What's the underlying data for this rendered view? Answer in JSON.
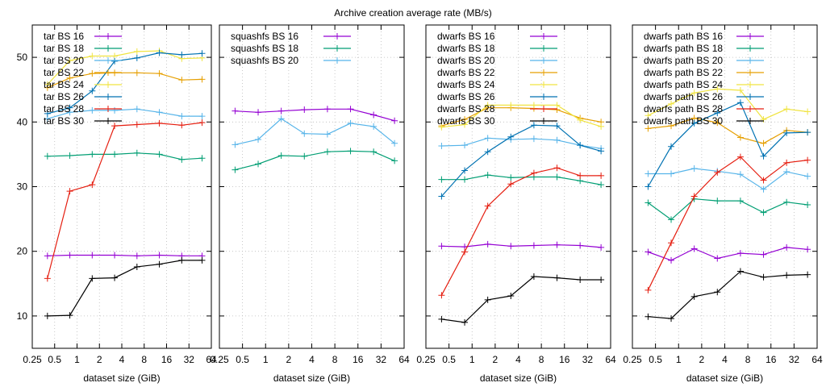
{
  "chart_data": {
    "title": "Archive creation average rate (MB/s)",
    "type": "line",
    "x_scale": "log2",
    "xlim": [
      0.25,
      64
    ],
    "ylim": [
      5,
      55
    ],
    "xticks": [
      {
        "v": 0.25,
        "label": "0.25"
      },
      {
        "v": 0.5,
        "label": "0.5"
      },
      {
        "v": 1,
        "label": "1"
      },
      {
        "v": 2,
        "label": "2"
      },
      {
        "v": 4,
        "label": "4"
      },
      {
        "v": 8,
        "label": "8"
      },
      {
        "v": 16,
        "label": "16"
      },
      {
        "v": 32,
        "label": "32"
      },
      {
        "v": 64,
        "label": "64"
      }
    ],
    "yticks": [
      {
        "v": 10,
        "label": "10"
      },
      {
        "v": 20,
        "label": "20"
      },
      {
        "v": 30,
        "label": "30"
      },
      {
        "v": 40,
        "label": "40"
      },
      {
        "v": 50,
        "label": "50"
      }
    ],
    "grid": true,
    "legend_position": "top-left",
    "panels": [
      {
        "xlabel": "dataset size (GiB)",
        "series": [
          {
            "name": "tar BS 16",
            "color": "#9400d3",
            "x": [
              0.4,
              0.8,
              1.6,
              3.2,
              6.4,
              12.8,
              25.6,
              48
            ],
            "y": [
              19.3,
              19.4,
              19.4,
              19.4,
              19.3,
              19.4,
              19.3,
              19.3
            ]
          },
          {
            "name": "tar BS 18",
            "color": "#009e73",
            "x": [
              0.4,
              0.8,
              1.6,
              3.2,
              6.4,
              12.8,
              25.6,
              48
            ],
            "y": [
              34.7,
              34.8,
              35.0,
              35.0,
              35.2,
              35.0,
              34.2,
              34.4
            ]
          },
          {
            "name": "tar BS 20",
            "color": "#56b4e9",
            "x": [
              0.4,
              0.8,
              1.6,
              3.2,
              6.4,
              12.8,
              25.6,
              48
            ],
            "y": [
              40.5,
              41.5,
              41.8,
              41.8,
              42.0,
              41.5,
              40.9,
              40.9
            ]
          },
          {
            "name": "tar BS 22",
            "color": "#e69f00",
            "x": [
              0.4,
              0.8,
              1.6,
              3.2,
              6.4,
              12.8,
              25.6,
              48
            ],
            "y": [
              45.3,
              46.8,
              47.5,
              47.6,
              47.6,
              47.5,
              46.5,
              46.6
            ]
          },
          {
            "name": "tar BS 24",
            "color": "#f0e442",
            "x": [
              0.4,
              0.8,
              1.6,
              3.2,
              6.4,
              12.8,
              25.6,
              48
            ],
            "y": [
              45.8,
              49.5,
              50.2,
              50.2,
              50.9,
              51.0,
              49.8,
              49.9
            ]
          },
          {
            "name": "tar BS 26",
            "color": "#0072b2",
            "x": [
              0.4,
              0.8,
              1.6,
              3.2,
              6.4,
              12.8,
              25.6,
              48
            ],
            "y": [
              41.3,
              42.2,
              44.8,
              49.4,
              49.9,
              50.7,
              50.4,
              50.6
            ]
          },
          {
            "name": "tar BS 28",
            "color": "#e51e10",
            "x": [
              0.4,
              0.8,
              1.6,
              3.2,
              6.4,
              12.8,
              25.6,
              48
            ],
            "y": [
              15.8,
              29.3,
              30.3,
              39.4,
              39.6,
              39.8,
              39.5,
              39.9
            ]
          },
          {
            "name": "tar BS 30",
            "color": "#000000",
            "x": [
              0.4,
              0.8,
              1.6,
              3.2,
              6.4,
              12.8,
              25.6,
              48
            ],
            "y": [
              10.0,
              10.1,
              15.8,
              15.9,
              17.6,
              18.0,
              18.6,
              18.6
            ]
          }
        ]
      },
      {
        "xlabel": "dataset size (GiB)",
        "series": [
          {
            "name": "squashfs BS 16",
            "color": "#9400d3",
            "x": [
              0.4,
              0.8,
              1.6,
              3.2,
              6.4,
              12.8,
              25.6,
              48
            ],
            "y": [
              41.7,
              41.5,
              41.7,
              41.9,
              42.0,
              42.0,
              41.1,
              40.2
            ]
          },
          {
            "name": "squashfs BS 18",
            "color": "#009e73",
            "x": [
              0.4,
              0.8,
              1.6,
              3.2,
              6.4,
              12.8,
              25.6,
              48
            ],
            "y": [
              32.6,
              33.5,
              34.8,
              34.7,
              35.4,
              35.5,
              35.4,
              34.0
            ]
          },
          {
            "name": "squashfs BS 20",
            "color": "#56b4e9",
            "x": [
              0.4,
              0.8,
              1.6,
              3.2,
              6.4,
              12.8,
              25.6,
              48
            ],
            "y": [
              36.5,
              37.3,
              40.5,
              38.2,
              38.1,
              39.8,
              39.3,
              36.7
            ]
          }
        ]
      },
      {
        "xlabel": "dataset size (GiB)",
        "series": [
          {
            "name": "dwarfs BS 16",
            "color": "#9400d3",
            "x": [
              0.4,
              0.8,
              1.6,
              3.2,
              6.4,
              12.8,
              25.6,
              48
            ],
            "y": [
              20.8,
              20.7,
              21.1,
              20.8,
              20.9,
              21.0,
              20.9,
              20.6
            ]
          },
          {
            "name": "dwarfs BS 18",
            "color": "#009e73",
            "x": [
              0.4,
              0.8,
              1.6,
              3.2,
              6.4,
              12.8,
              25.6,
              48
            ],
            "y": [
              31.1,
              31.1,
              31.8,
              31.4,
              31.5,
              31.5,
              30.9,
              30.3
            ]
          },
          {
            "name": "dwarfs BS 20",
            "color": "#56b4e9",
            "x": [
              0.4,
              0.8,
              1.6,
              3.2,
              6.4,
              12.8,
              25.6,
              48
            ],
            "y": [
              36.3,
              36.4,
              37.5,
              37.3,
              37.4,
              37.2,
              36.4,
              35.9
            ]
          },
          {
            "name": "dwarfs BS 22",
            "color": "#e69f00",
            "x": [
              0.4,
              0.8,
              1.6,
              3.2,
              6.4,
              12.8,
              25.6,
              48
            ],
            "y": [
              39.4,
              40.4,
              42.2,
              42.2,
              42.1,
              41.9,
              40.6,
              40.0
            ]
          },
          {
            "name": "dwarfs BS 24",
            "color": "#f0e442",
            "x": [
              0.4,
              0.8,
              1.6,
              3.2,
              6.4,
              12.8,
              25.6,
              48
            ],
            "y": [
              39.2,
              39.6,
              42.6,
              42.6,
              42.6,
              42.6,
              40.3,
              39.3
            ]
          },
          {
            "name": "dwarfs BS 26",
            "color": "#0072b2",
            "x": [
              0.4,
              0.8,
              1.6,
              3.2,
              6.4,
              12.8,
              25.6,
              48
            ],
            "y": [
              28.5,
              32.5,
              35.4,
              37.7,
              39.5,
              39.4,
              36.4,
              35.5
            ]
          },
          {
            "name": "dwarfs BS 28",
            "color": "#e51e10",
            "x": [
              0.4,
              0.8,
              1.6,
              3.2,
              6.4,
              12.8,
              25.6,
              48
            ],
            "y": [
              13.2,
              19.9,
              27.0,
              30.4,
              32.1,
              32.9,
              31.7,
              31.7
            ]
          },
          {
            "name": "dwarfs BS 30",
            "color": "#000000",
            "x": [
              0.4,
              0.8,
              1.6,
              3.2,
              6.4,
              12.8,
              25.6,
              48
            ],
            "y": [
              9.5,
              9.0,
              12.5,
              13.1,
              16.1,
              15.9,
              15.6,
              15.6
            ]
          }
        ]
      },
      {
        "xlabel": "dataset size (GiB)",
        "series": [
          {
            "name": "dwarfs path BS 16",
            "color": "#9400d3",
            "x": [
              0.4,
              0.8,
              1.6,
              3.2,
              6.4,
              12.8,
              25.6,
              48
            ],
            "y": [
              19.9,
              18.6,
              20.4,
              18.9,
              19.7,
              19.5,
              20.6,
              20.3
            ]
          },
          {
            "name": "dwarfs path BS 18",
            "color": "#009e73",
            "x": [
              0.4,
              0.8,
              1.6,
              3.2,
              6.4,
              12.8,
              25.6,
              48
            ],
            "y": [
              27.5,
              24.9,
              28.1,
              27.8,
              27.8,
              26.0,
              27.6,
              27.2
            ]
          },
          {
            "name": "dwarfs path BS 20",
            "color": "#56b4e9",
            "x": [
              0.4,
              0.8,
              1.6,
              3.2,
              6.4,
              12.8,
              25.6,
              48
            ],
            "y": [
              32.0,
              32.0,
              32.8,
              32.4,
              31.9,
              29.6,
              32.3,
              31.6
            ]
          },
          {
            "name": "dwarfs path BS 22",
            "color": "#e69f00",
            "x": [
              0.4,
              0.8,
              1.6,
              3.2,
              6.4,
              12.8,
              25.6,
              48
            ],
            "y": [
              39.0,
              39.4,
              40.6,
              39.9,
              37.6,
              36.7,
              38.7,
              38.4
            ]
          },
          {
            "name": "dwarfs path BS 24",
            "color": "#f0e442",
            "x": [
              0.4,
              0.8,
              1.6,
              3.2,
              6.4,
              12.8,
              25.6,
              48
            ],
            "y": [
              41.0,
              42.8,
              44.5,
              45.1,
              44.9,
              40.4,
              42.0,
              41.6
            ]
          },
          {
            "name": "dwarfs path BS 26",
            "color": "#0072b2",
            "x": [
              0.4,
              0.8,
              1.6,
              3.2,
              6.4,
              12.8,
              25.6,
              48
            ],
            "y": [
              30.0,
              36.2,
              39.8,
              41.4,
              43.0,
              34.7,
              38.3,
              38.4
            ]
          },
          {
            "name": "dwarfs path BS 28",
            "color": "#e51e10",
            "x": [
              0.4,
              0.8,
              1.6,
              3.2,
              6.4,
              12.8,
              25.6,
              48
            ],
            "y": [
              14.0,
              21.3,
              28.5,
              32.2,
              34.6,
              31.0,
              33.7,
              34.1
            ]
          },
          {
            "name": "dwarfs path BS 30",
            "color": "#000000",
            "x": [
              0.4,
              0.8,
              1.6,
              3.2,
              6.4,
              12.8,
              25.6,
              48
            ],
            "y": [
              9.9,
              9.6,
              13.0,
              13.7,
              16.9,
              16.0,
              16.3,
              16.4
            ]
          }
        ]
      }
    ]
  }
}
